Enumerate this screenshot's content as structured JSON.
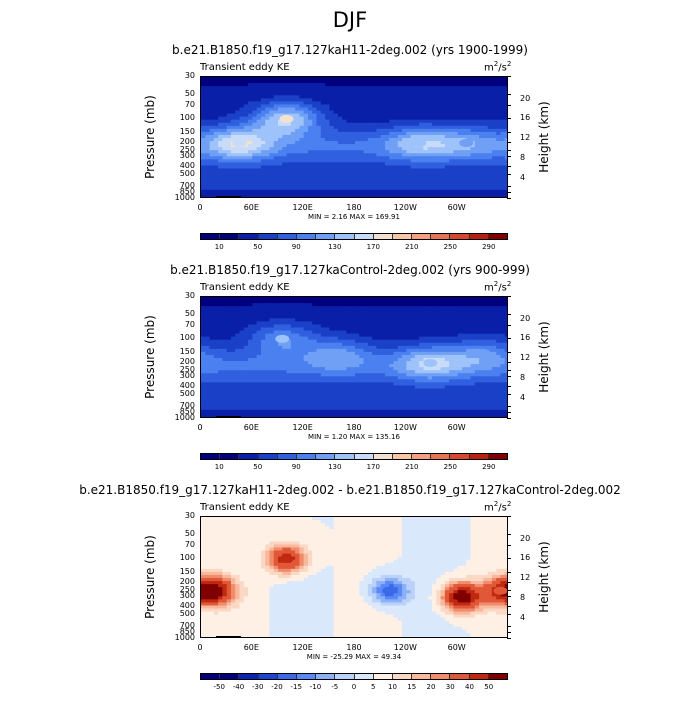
{
  "title": "DJF",
  "colors": {
    "abs": [
      "#00007f",
      "#0a1fa8",
      "#1a40c8",
      "#3060e0",
      "#4a80f0",
      "#70a0f5",
      "#9ec2fa",
      "#c8dcfa",
      "#f2e0d0",
      "#f7c8a8",
      "#f4a080",
      "#e87458",
      "#d84830",
      "#b82010",
      "#800000"
    ],
    "diff": [
      "#00007f",
      "#0a24b0",
      "#1a46d0",
      "#3a6ae8",
      "#5a8af5",
      "#8cb0f8",
      "#bad2fa",
      "#dae8fc",
      "#fff0e6",
      "#fbd8c4",
      "#f8b89c",
      "#f08c6c",
      "#e05838",
      "#c02810",
      "#800000"
    ]
  },
  "chart_data": [
    {
      "type": "heatmap",
      "title": "b.e21.B1850.f19_g17.127kaH11-2deg.002 (yrs 1900-1999)",
      "subtitle": "Transient eddy KE",
      "units": "m2/s2",
      "ylabel": "Pressure (mb)",
      "ylabel_right": "Height (km)",
      "x_ticks": [
        "0",
        "60E",
        "120E",
        "180",
        "120W",
        "60W"
      ],
      "y_ticks": [
        "30",
        "50",
        "70",
        "100",
        "150",
        "200",
        "250",
        "300",
        "400",
        "500",
        "700",
        "850",
        "1000"
      ],
      "height_ticks": [
        "20",
        "16",
        "12",
        "8",
        "4"
      ],
      "min_max": "MIN =   2.16  MAX =  169.91",
      "min": 2.16,
      "max": 169.91,
      "colorbar_labels": [
        "10",
        "50",
        "90",
        "130",
        "170",
        "210",
        "250",
        "290"
      ],
      "colorbar_levels": [
        10,
        30,
        50,
        70,
        90,
        110,
        130,
        150,
        170,
        190,
        210,
        230,
        250,
        270,
        290
      ],
      "key_features": [
        {
          "lon": 100,
          "pressure": 100,
          "value": 168
        },
        {
          "lon": 45,
          "pressure": 200,
          "value": 145
        },
        {
          "lon": 255,
          "pressure": 200,
          "value": 120
        },
        {
          "lon": 310,
          "pressure": 200,
          "value": 100
        }
      ]
    },
    {
      "type": "heatmap",
      "title": "b.e21.B1850.f19_g17.127kaControl-2deg.002 (yrs 900-999)",
      "subtitle": "Transient eddy KE",
      "units": "m2/s2",
      "ylabel": "Pressure (mb)",
      "ylabel_right": "Height (km)",
      "x_ticks": [
        "0",
        "60E",
        "120E",
        "180",
        "120W",
        "60W"
      ],
      "y_ticks": [
        "30",
        "50",
        "70",
        "100",
        "150",
        "200",
        "250",
        "300",
        "400",
        "500",
        "700",
        "850",
        "1000"
      ],
      "height_ticks": [
        "20",
        "16",
        "12",
        "8",
        "4"
      ],
      "min_max": "MIN =   1.20  MAX =  135.16",
      "min": 1.2,
      "max": 135.16,
      "colorbar_labels": [
        "10",
        "50",
        "90",
        "130",
        "170",
        "210",
        "250",
        "290"
      ],
      "colorbar_levels": [
        10,
        30,
        50,
        70,
        90,
        110,
        130,
        150,
        170,
        190,
        210,
        230,
        250,
        270,
        290
      ],
      "key_features": [
        {
          "lon": 95,
          "pressure": 100,
          "value": 125
        },
        {
          "lon": 160,
          "pressure": 150,
          "value": 110
        },
        {
          "lon": 268,
          "pressure": 200,
          "value": 130
        },
        {
          "lon": 330,
          "pressure": 150,
          "value": 105
        }
      ]
    },
    {
      "type": "heatmap",
      "title": "b.e21.B1850.f19_g17.127kaH11-2deg.002 - b.e21.B1850.f19_g17.127kaControl-2deg.002",
      "subtitle": "Transient eddy KE",
      "units": "m2/s2",
      "ylabel": "Pressure (mb)",
      "ylabel_right": "Height (km)",
      "x_ticks": [
        "0",
        "60E",
        "120E",
        "180",
        "120W",
        "60W"
      ],
      "y_ticks": [
        "30",
        "50",
        "70",
        "100",
        "150",
        "200",
        "250",
        "300",
        "400",
        "500",
        "700",
        "850",
        "1000"
      ],
      "height_ticks": [
        "20",
        "16",
        "12",
        "8",
        "4"
      ],
      "min_max": "MIN = -25.29  MAX =  49.34",
      "min": -25.29,
      "max": 49.34,
      "colorbar_labels": [
        "-50",
        "-40",
        "-30",
        "-20",
        "-15",
        "-10",
        "-5",
        "0",
        "5",
        "10",
        "15",
        "20",
        "30",
        "40",
        "50"
      ],
      "colorbar_levels": [
        -50,
        -40,
        -30,
        -20,
        -15,
        -10,
        -5,
        0,
        5,
        10,
        15,
        20,
        30,
        40,
        50
      ],
      "key_features": [
        {
          "lon": 15,
          "pressure": 250,
          "value": 45
        },
        {
          "lon": 100,
          "pressure": 100,
          "value": 35
        },
        {
          "lon": 305,
          "pressure": 300,
          "value": 49
        },
        {
          "lon": 350,
          "pressure": 250,
          "value": 25
        },
        {
          "lon": 220,
          "pressure": 250,
          "value": -25
        }
      ]
    }
  ]
}
